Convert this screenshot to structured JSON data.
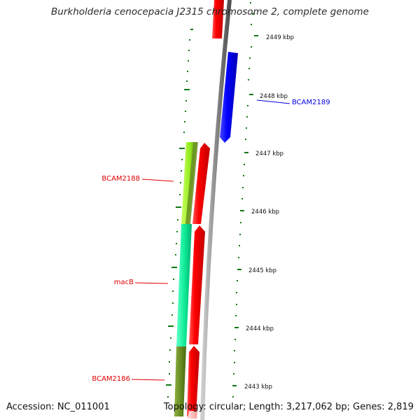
{
  "header": {
    "title": "Burkholderia cenocepacia J2315 chromosome 2, complete genome"
  },
  "footer": {
    "accession": "Accession: NC_011001",
    "summary": "Topology: circular; Length: 3,217,062 bp; Genes: 2,819"
  },
  "ruler": {
    "ticks": [
      "2443 kbp",
      "2444 kbp",
      "2445 kbp",
      "2446 kbp",
      "2447 kbp",
      "2448 kbp",
      "2449 kbp"
    ]
  },
  "genes": [
    {
      "label": "BCAM2189",
      "color": "#0000dd"
    },
    {
      "label": "BCAM2188",
      "color": "#dd0000"
    },
    {
      "label": "macB",
      "color": "#dd0000"
    },
    {
      "label": "BCAM2186",
      "color": "#dd0000"
    }
  ],
  "colors": {
    "forward_cds": "#ff0000",
    "reverse_cds": "#0000ff",
    "backbone": "#808080",
    "tick": "#117711",
    "cog_yellowgreen": "#99ee22",
    "cog_olive": "#6b8e23",
    "cog_teal": "#11ee99"
  }
}
